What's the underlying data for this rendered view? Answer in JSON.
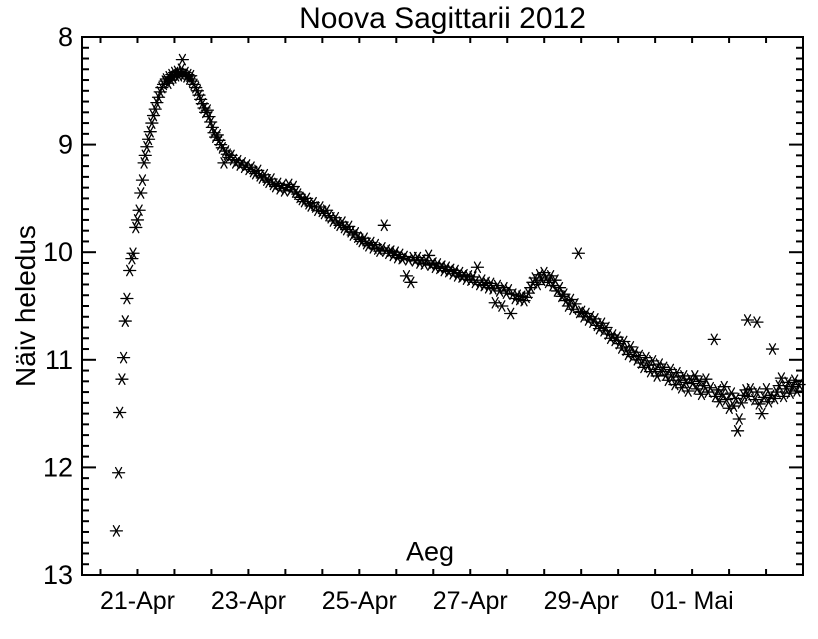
{
  "chart_data": {
    "type": "scatter",
    "title": "Noova Sagittarii 2012",
    "xlabel": "Aeg",
    "ylabel": "Näiv heledus",
    "marker": "asterisk",
    "marker_color": "#000000",
    "background": "#ffffff",
    "legend": "none",
    "grid": false,
    "x_axis": {
      "note": "x values are decimal April-2012 days; 31 = 01 May, 32 = 02 May",
      "range": [
        20,
        33
      ],
      "major_tick_values": [
        21,
        23,
        25,
        27,
        29,
        31
      ],
      "tick_labels": [
        "21-Apr",
        "23-Apr",
        "25-Apr",
        "27-Apr",
        "29-Apr",
        "01- Mai"
      ],
      "minor_ticks_per_major_interval": 3
    },
    "y_axis": {
      "range": [
        8,
        13
      ],
      "inverted": true,
      "major_tick_values": [
        8,
        9,
        10,
        11,
        12,
        13
      ],
      "tick_labels": [
        "8",
        "9",
        "10",
        "11",
        "12",
        "13"
      ],
      "minor_tick_step": 0.1
    },
    "points": [
      [
        20.62,
        12.59
      ],
      [
        20.66,
        12.05
      ],
      [
        20.68,
        11.49
      ],
      [
        20.72,
        11.18
      ],
      [
        20.75,
        10.98
      ],
      [
        20.78,
        10.64
      ],
      [
        20.81,
        10.43
      ],
      [
        20.86,
        10.17
      ],
      [
        20.9,
        10.06
      ],
      [
        20.92,
        10.01
      ],
      [
        20.97,
        9.77
      ],
      [
        21.0,
        9.7
      ],
      [
        21.03,
        9.61
      ],
      [
        21.06,
        9.45
      ],
      [
        21.09,
        9.33
      ],
      [
        21.12,
        9.17
      ],
      [
        21.14,
        9.1
      ],
      [
        21.17,
        9.02
      ],
      [
        21.2,
        8.95
      ],
      [
        21.23,
        8.88
      ],
      [
        21.26,
        8.8
      ],
      [
        21.29,
        8.73
      ],
      [
        21.32,
        8.67
      ],
      [
        21.35,
        8.61
      ],
      [
        21.38,
        8.56
      ],
      [
        21.41,
        8.51
      ],
      [
        21.44,
        8.47
      ],
      [
        21.47,
        8.44
      ],
      [
        21.5,
        8.41
      ],
      [
        21.52,
        8.39
      ],
      [
        21.55,
        8.43
      ],
      [
        21.57,
        8.37
      ],
      [
        21.6,
        8.4
      ],
      [
        21.62,
        8.35
      ],
      [
        21.64,
        8.38
      ],
      [
        21.67,
        8.33
      ],
      [
        21.69,
        8.36
      ],
      [
        21.72,
        8.32
      ],
      [
        21.74,
        8.36
      ],
      [
        21.77,
        8.34
      ],
      [
        21.79,
        8.3
      ],
      [
        21.81,
        8.21
      ],
      [
        21.84,
        8.35
      ],
      [
        21.86,
        8.33
      ],
      [
        21.89,
        8.37
      ],
      [
        21.91,
        8.35
      ],
      [
        21.94,
        8.39
      ],
      [
        21.96,
        8.36
      ],
      [
        21.99,
        8.41
      ],
      [
        22.02,
        8.44
      ],
      [
        22.05,
        8.47
      ],
      [
        22.08,
        8.5
      ],
      [
        22.11,
        8.54
      ],
      [
        22.14,
        8.58
      ],
      [
        22.17,
        8.62
      ],
      [
        22.2,
        8.66
      ],
      [
        22.23,
        8.7
      ],
      [
        22.26,
        8.68
      ],
      [
        22.29,
        8.74
      ],
      [
        22.32,
        8.79
      ],
      [
        22.35,
        8.84
      ],
      [
        22.38,
        8.89
      ],
      [
        22.41,
        8.93
      ],
      [
        22.44,
        8.91
      ],
      [
        22.47,
        8.96
      ],
      [
        22.5,
        9.0
      ],
      [
        22.53,
        9.03
      ],
      [
        22.56,
        9.17
      ],
      [
        22.59,
        9.06
      ],
      [
        22.62,
        9.09
      ],
      [
        22.65,
        9.12
      ],
      [
        22.69,
        9.1
      ],
      [
        22.73,
        9.14
      ],
      [
        22.77,
        9.17
      ],
      [
        22.81,
        9.15
      ],
      [
        22.85,
        9.19
      ],
      [
        22.89,
        9.17
      ],
      [
        22.93,
        9.21
      ],
      [
        22.97,
        9.19
      ],
      [
        23.01,
        9.23
      ],
      [
        23.05,
        9.21
      ],
      [
        23.09,
        9.25
      ],
      [
        23.13,
        9.27
      ],
      [
        23.17,
        9.24
      ],
      [
        23.21,
        9.29
      ],
      [
        23.25,
        9.31
      ],
      [
        23.29,
        9.28
      ],
      [
        23.33,
        9.33
      ],
      [
        23.37,
        9.35
      ],
      [
        23.41,
        9.32
      ],
      [
        23.45,
        9.37
      ],
      [
        23.49,
        9.39
      ],
      [
        23.53,
        9.36
      ],
      [
        23.57,
        9.41
      ],
      [
        23.61,
        9.38
      ],
      [
        23.65,
        9.43
      ],
      [
        23.69,
        9.4
      ],
      [
        23.73,
        9.37
      ],
      [
        23.77,
        9.42
      ],
      [
        23.81,
        9.39
      ],
      [
        23.85,
        9.44
      ],
      [
        23.89,
        9.46
      ],
      [
        23.93,
        9.49
      ],
      [
        23.97,
        9.51
      ],
      [
        24.01,
        9.53
      ],
      [
        24.05,
        9.5
      ],
      [
        24.09,
        9.55
      ],
      [
        24.13,
        9.57
      ],
      [
        24.17,
        9.54
      ],
      [
        24.21,
        9.58
      ],
      [
        24.25,
        9.61
      ],
      [
        24.29,
        9.58
      ],
      [
        24.33,
        9.62
      ],
      [
        24.37,
        9.64
      ],
      [
        24.41,
        9.61
      ],
      [
        24.45,
        9.66
      ],
      [
        24.49,
        9.68
      ],
      [
        24.53,
        9.71
      ],
      [
        24.57,
        9.68
      ],
      [
        24.61,
        9.73
      ],
      [
        24.65,
        9.75
      ],
      [
        24.69,
        9.72
      ],
      [
        24.73,
        9.77
      ],
      [
        24.77,
        9.79
      ],
      [
        24.81,
        9.76
      ],
      [
        24.85,
        9.81
      ],
      [
        24.89,
        9.84
      ],
      [
        24.93,
        9.82
      ],
      [
        24.97,
        9.86
      ],
      [
        25.01,
        9.88
      ],
      [
        25.05,
        9.9
      ],
      [
        25.09,
        9.87
      ],
      [
        25.13,
        9.92
      ],
      [
        25.17,
        9.94
      ],
      [
        25.21,
        9.91
      ],
      [
        25.25,
        9.96
      ],
      [
        25.29,
        9.93
      ],
      [
        25.33,
        9.97
      ],
      [
        25.37,
        9.99
      ],
      [
        25.41,
        9.96
      ],
      [
        25.45,
        9.75
      ],
      [
        25.49,
        9.98
      ],
      [
        25.53,
        10.01
      ],
      [
        25.57,
        9.99
      ],
      [
        25.61,
        10.03
      ],
      [
        25.65,
        10.0
      ],
      [
        25.69,
        10.05
      ],
      [
        25.73,
        10.02
      ],
      [
        25.77,
        10.06
      ],
      [
        25.81,
        10.04
      ],
      [
        25.85,
        10.22
      ],
      [
        25.89,
        10.07
      ],
      [
        25.93,
        10.28
      ],
      [
        25.97,
        10.05
      ],
      [
        26.01,
        10.08
      ],
      [
        26.05,
        10.05
      ],
      [
        26.09,
        10.1
      ],
      [
        26.13,
        10.07
      ],
      [
        26.17,
        10.11
      ],
      [
        26.21,
        10.08
      ],
      [
        26.25,
        10.03
      ],
      [
        26.29,
        10.12
      ],
      [
        26.33,
        10.1
      ],
      [
        26.37,
        10.14
      ],
      [
        26.41,
        10.11
      ],
      [
        26.45,
        10.15
      ],
      [
        26.49,
        10.13
      ],
      [
        26.53,
        10.17
      ],
      [
        26.57,
        10.14
      ],
      [
        26.61,
        10.18
      ],
      [
        26.65,
        10.16
      ],
      [
        26.69,
        10.2
      ],
      [
        26.73,
        10.17
      ],
      [
        26.77,
        10.22
      ],
      [
        26.81,
        10.19
      ],
      [
        26.85,
        10.23
      ],
      [
        26.89,
        10.21
      ],
      [
        26.93,
        10.25
      ],
      [
        26.97,
        10.22
      ],
      [
        27.01,
        10.26
      ],
      [
        27.05,
        10.23
      ],
      [
        27.09,
        10.28
      ],
      [
        27.13,
        10.14
      ],
      [
        27.17,
        10.3
      ],
      [
        27.21,
        10.26
      ],
      [
        27.25,
        10.31
      ],
      [
        27.29,
        10.28
      ],
      [
        27.33,
        10.33
      ],
      [
        27.37,
        10.29
      ],
      [
        27.41,
        10.34
      ],
      [
        27.45,
        10.47
      ],
      [
        27.49,
        10.31
      ],
      [
        27.53,
        10.36
      ],
      [
        27.57,
        10.5
      ],
      [
        27.61,
        10.33
      ],
      [
        27.65,
        10.38
      ],
      [
        27.69,
        10.35
      ],
      [
        27.73,
        10.57
      ],
      [
        27.77,
        10.39
      ],
      [
        27.81,
        10.43
      ],
      [
        27.85,
        10.4
      ],
      [
        27.89,
        10.44
      ],
      [
        27.93,
        10.41
      ],
      [
        27.97,
        10.45
      ],
      [
        28.01,
        10.42
      ],
      [
        28.05,
        10.38
      ],
      [
        28.09,
        10.33
      ],
      [
        28.13,
        10.28
      ],
      [
        28.17,
        10.24
      ],
      [
        28.21,
        10.3
      ],
      [
        28.25,
        10.21
      ],
      [
        28.29,
        10.26
      ],
      [
        28.33,
        10.19
      ],
      [
        28.37,
        10.24
      ],
      [
        28.41,
        10.28
      ],
      [
        28.45,
        10.22
      ],
      [
        28.49,
        10.31
      ],
      [
        28.53,
        10.26
      ],
      [
        28.57,
        10.36
      ],
      [
        28.61,
        10.33
      ],
      [
        28.65,
        10.41
      ],
      [
        28.69,
        10.39
      ],
      [
        28.73,
        10.45
      ],
      [
        28.77,
        10.5
      ],
      [
        28.81,
        10.44
      ],
      [
        28.85,
        10.53
      ],
      [
        28.89,
        10.48
      ],
      [
        28.95,
        10.01
      ],
      [
        28.97,
        10.56
      ],
      [
        29.01,
        10.55
      ],
      [
        29.05,
        10.6
      ],
      [
        29.09,
        10.57
      ],
      [
        29.13,
        10.63
      ],
      [
        29.17,
        10.6
      ],
      [
        29.21,
        10.65
      ],
      [
        29.25,
        10.62
      ],
      [
        29.29,
        10.68
      ],
      [
        29.33,
        10.71
      ],
      [
        29.37,
        10.66
      ],
      [
        29.41,
        10.73
      ],
      [
        29.45,
        10.7
      ],
      [
        29.49,
        10.76
      ],
      [
        29.53,
        10.8
      ],
      [
        29.57,
        10.77
      ],
      [
        29.61,
        10.82
      ],
      [
        29.65,
        10.79
      ],
      [
        29.69,
        10.85
      ],
      [
        29.73,
        10.89
      ],
      [
        29.77,
        10.83
      ],
      [
        29.81,
        10.91
      ],
      [
        29.85,
        10.95
      ],
      [
        29.89,
        10.88
      ],
      [
        29.93,
        10.97
      ],
      [
        29.97,
        10.93
      ],
      [
        30.01,
        11.0
      ],
      [
        30.05,
        10.96
      ],
      [
        30.09,
        11.03
      ],
      [
        30.13,
        11.07
      ],
      [
        30.17,
        10.98
      ],
      [
        30.21,
        11.05
      ],
      [
        30.25,
        11.11
      ],
      [
        30.29,
        11.01
      ],
      [
        30.33,
        11.09
      ],
      [
        30.37,
        11.15
      ],
      [
        30.41,
        11.04
      ],
      [
        30.45,
        11.11
      ],
      [
        30.49,
        11.07
      ],
      [
        30.53,
        11.14
      ],
      [
        30.57,
        11.19
      ],
      [
        30.61,
        11.09
      ],
      [
        30.65,
        11.16
      ],
      [
        30.69,
        11.23
      ],
      [
        30.73,
        11.12
      ],
      [
        30.77,
        11.19
      ],
      [
        30.81,
        11.26
      ],
      [
        30.85,
        11.15
      ],
      [
        30.89,
        11.21
      ],
      [
        30.93,
        11.29
      ],
      [
        30.97,
        11.18
      ],
      [
        31.01,
        11.22
      ],
      [
        31.05,
        11.15
      ],
      [
        31.09,
        11.27
      ],
      [
        31.13,
        11.2
      ],
      [
        31.17,
        11.32
      ],
      [
        31.21,
        11.24
      ],
      [
        31.25,
        11.18
      ],
      [
        31.29,
        11.3
      ],
      [
        31.33,
        11.26
      ],
      [
        31.4,
        10.81
      ],
      [
        31.42,
        11.34
      ],
      [
        31.46,
        11.28
      ],
      [
        31.5,
        11.39
      ],
      [
        31.54,
        11.32
      ],
      [
        31.58,
        11.25
      ],
      [
        31.62,
        11.37
      ],
      [
        31.67,
        11.45
      ],
      [
        31.71,
        11.31
      ],
      [
        31.75,
        11.43
      ],
      [
        31.79,
        11.36
      ],
      [
        31.82,
        11.66
      ],
      [
        31.85,
        11.55
      ],
      [
        31.89,
        11.4
      ],
      [
        31.93,
        11.33
      ],
      [
        31.97,
        11.28
      ],
      [
        32.0,
        10.63
      ],
      [
        32.01,
        11.34
      ],
      [
        32.05,
        11.27
      ],
      [
        32.13,
        11.37
      ],
      [
        32.17,
        10.65
      ],
      [
        32.17,
        11.3
      ],
      [
        32.21,
        11.41
      ],
      [
        32.26,
        11.5
      ],
      [
        32.3,
        11.35
      ],
      [
        32.34,
        11.27
      ],
      [
        32.38,
        11.39
      ],
      [
        32.42,
        11.33
      ],
      [
        32.45,
        10.9
      ],
      [
        32.49,
        11.36
      ],
      [
        32.53,
        11.3
      ],
      [
        32.57,
        11.24
      ],
      [
        32.61,
        11.17
      ],
      [
        32.65,
        11.34
      ],
      [
        32.69,
        11.27
      ],
      [
        32.73,
        11.21
      ],
      [
        32.77,
        11.31
      ],
      [
        32.81,
        11.25
      ],
      [
        32.85,
        11.19
      ],
      [
        32.89,
        11.29
      ],
      [
        32.93,
        11.23
      ]
    ]
  }
}
